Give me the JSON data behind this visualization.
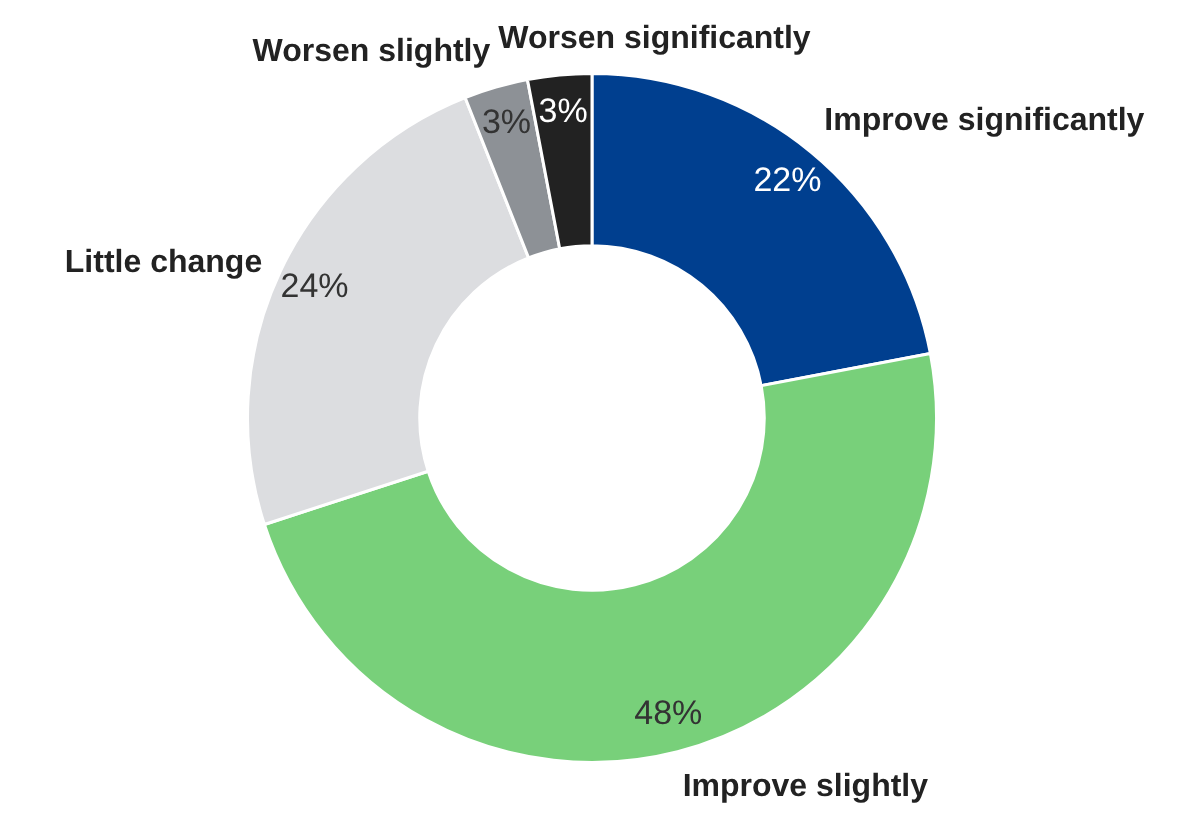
{
  "chart_data": {
    "type": "donut",
    "categories": [
      "Improve significantly",
      "Improve slightly",
      "Little change",
      "Worsen slightly",
      "Worsen significantly"
    ],
    "values": [
      22,
      48,
      24,
      3,
      3
    ],
    "colors": [
      "#003f8f",
      "#78d07a",
      "#dcdde0",
      "#8d9196",
      "#222222"
    ],
    "value_labels": [
      "22%",
      "48%",
      "24%",
      "3%",
      "3%"
    ]
  }
}
